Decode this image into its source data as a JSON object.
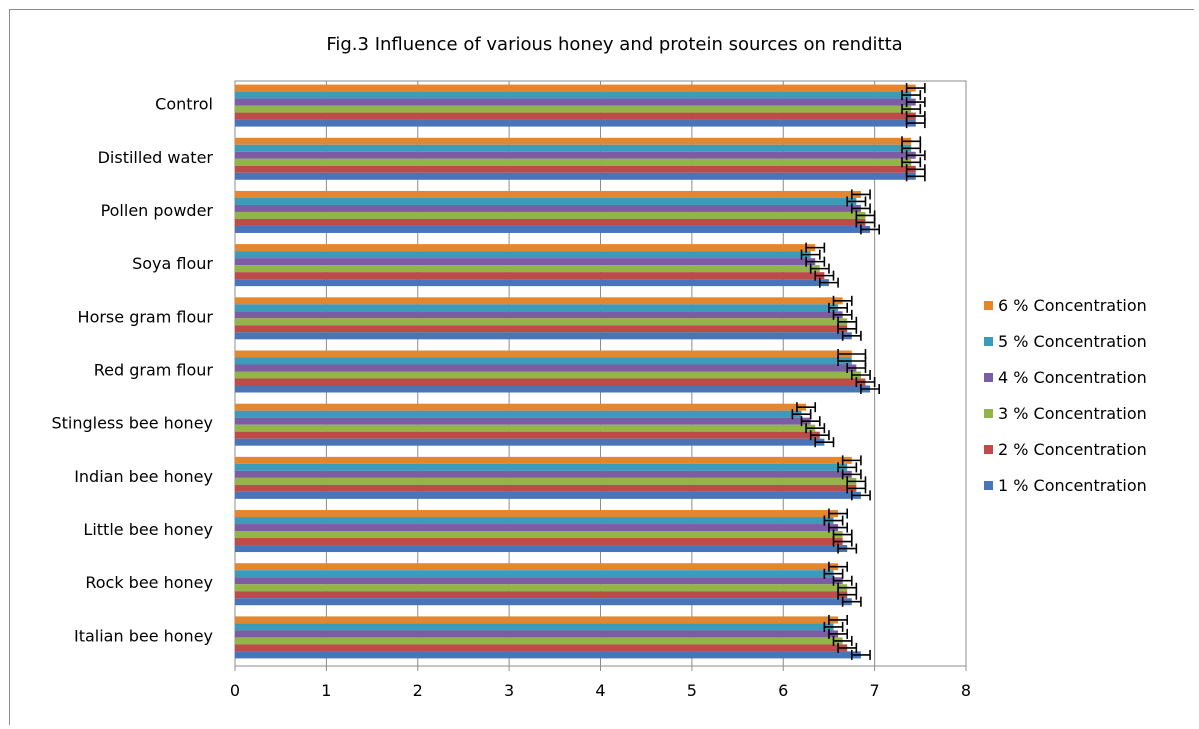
{
  "chart_data": {
    "type": "bar",
    "orientation": "horizontal",
    "title": "Fig.3  Influence of various honey and protein sources on renditta",
    "xlabel": "",
    "ylabel": "",
    "xlim": [
      0,
      8
    ],
    "x_ticks": [
      "0",
      "1",
      "2",
      "3",
      "4",
      "5",
      "6",
      "7",
      "8"
    ],
    "grid": "vertical",
    "legend_position": "right",
    "categories": [
      "Control",
      "Distilled water",
      "Pollen powder",
      "Soya flour",
      "Horse gram flour",
      "Red gram flour",
      "Stingless bee honey",
      "Indian bee honey",
      "Little bee honey",
      "Rock bee honey",
      "Italian bee honey"
    ],
    "series": [
      {
        "name": "6 % Concentration",
        "color": "#e3862e",
        "values": [
          7.45,
          7.4,
          6.85,
          6.35,
          6.65,
          6.75,
          6.25,
          6.75,
          6.6,
          6.6,
          6.6
        ],
        "errors": [
          0.1,
          0.1,
          0.1,
          0.1,
          0.1,
          0.15,
          0.1,
          0.1,
          0.1,
          0.1,
          0.1
        ]
      },
      {
        "name": "5 % Concentration",
        "color": "#3c9bb9",
        "values": [
          7.4,
          7.4,
          6.8,
          6.3,
          6.6,
          6.75,
          6.2,
          6.7,
          6.55,
          6.55,
          6.55
        ],
        "errors": [
          0.1,
          0.1,
          0.1,
          0.1,
          0.1,
          0.15,
          0.1,
          0.1,
          0.1,
          0.1,
          0.1
        ]
      },
      {
        "name": "4 % Concentration",
        "color": "#7b5ca5",
        "values": [
          7.45,
          7.45,
          6.85,
          6.35,
          6.65,
          6.8,
          6.3,
          6.75,
          6.6,
          6.65,
          6.6
        ],
        "errors": [
          0.1,
          0.1,
          0.1,
          0.1,
          0.1,
          0.1,
          0.1,
          0.1,
          0.1,
          0.1,
          0.1
        ]
      },
      {
        "name": "3 % Concentration",
        "color": "#92b449",
        "values": [
          7.4,
          7.4,
          6.9,
          6.4,
          6.7,
          6.85,
          6.35,
          6.8,
          6.65,
          6.7,
          6.65
        ],
        "errors": [
          0.1,
          0.1,
          0.1,
          0.1,
          0.1,
          0.1,
          0.1,
          0.1,
          0.1,
          0.1,
          0.1
        ]
      },
      {
        "name": "2 % Concentration",
        "color": "#bf4b48",
        "values": [
          7.45,
          7.45,
          6.9,
          6.45,
          6.7,
          6.9,
          6.4,
          6.8,
          6.65,
          6.7,
          6.7
        ],
        "errors": [
          0.1,
          0.1,
          0.1,
          0.1,
          0.1,
          0.1,
          0.1,
          0.1,
          0.1,
          0.1,
          0.1
        ]
      },
      {
        "name": "1 % Concentration",
        "color": "#4a74b8",
        "values": [
          7.45,
          7.45,
          6.95,
          6.5,
          6.75,
          6.95,
          6.45,
          6.85,
          6.7,
          6.75,
          6.85
        ],
        "errors": [
          0.1,
          0.1,
          0.1,
          0.1,
          0.1,
          0.1,
          0.1,
          0.1,
          0.1,
          0.1,
          0.1
        ]
      }
    ]
  }
}
